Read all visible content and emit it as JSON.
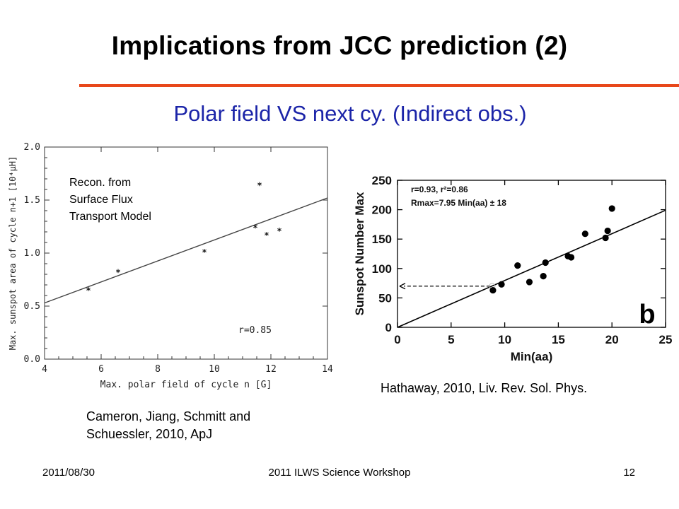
{
  "slide": {
    "title": "Implications from JCC prediction (2)",
    "subtitle": "Polar field VS next cy. (Indirect obs.)",
    "accent_color": "#e8471a",
    "subtitle_color": "#1b24a8"
  },
  "captions": {
    "left": [
      "Cameron, Jiang, Schmitt and",
      "Schuessler, 2010, ApJ"
    ],
    "right": "Hathaway, 2010, Liv. Rev. Sol. Phys."
  },
  "footer": {
    "date": "2011/08/30",
    "event": "2011 ILWS Science Workshop",
    "page": "12"
  },
  "chart_data": [
    {
      "type": "scatter",
      "xlabel": "Max. polar field of cycle n [G]",
      "ylabel": "Max. sunspot area of cycle n+1 [10⁴μH]",
      "xlim": [
        4,
        14
      ],
      "ylim": [
        0.0,
        2.0
      ],
      "xticks": [
        "4",
        "6",
        "8",
        "10",
        "12",
        "14"
      ],
      "yticks": [
        "0.0",
        "0.5",
        "1.0",
        "1.5",
        "2.0"
      ],
      "annotation": [
        "Recon. from",
        "Surface Flux",
        "Transport Model"
      ],
      "correlation_label": "r=0.85",
      "points": [
        {
          "x": 5.55,
          "y": 0.65
        },
        {
          "x": 6.6,
          "y": 0.82
        },
        {
          "x": 9.65,
          "y": 1.01
        },
        {
          "x": 11.45,
          "y": 1.24
        },
        {
          "x": 11.6,
          "y": 1.64
        },
        {
          "x": 11.85,
          "y": 1.17
        },
        {
          "x": 12.3,
          "y": 1.21
        }
      ],
      "fit_line": [
        {
          "x": 4,
          "y": 0.53
        },
        {
          "x": 14,
          "y": 1.52
        }
      ]
    },
    {
      "type": "scatter",
      "xlabel": "Min(aa)",
      "ylabel": "Sunspot Number Max",
      "xlim": [
        0,
        25
      ],
      "ylim": [
        0,
        250
      ],
      "xticks": [
        "0",
        "5",
        "10",
        "15",
        "20",
        "25"
      ],
      "yticks": [
        "0",
        "50",
        "100",
        "150",
        "200",
        "250"
      ],
      "stats_line1": "r=0.93, r²=0.86",
      "stats_line2": "Rmax=7.95 Min(aa) ± 18",
      "panel_label": "b",
      "points": [
        {
          "x": 8.9,
          "y": 63
        },
        {
          "x": 9.7,
          "y": 73
        },
        {
          "x": 11.2,
          "y": 105
        },
        {
          "x": 12.3,
          "y": 77
        },
        {
          "x": 13.6,
          "y": 87
        },
        {
          "x": 13.8,
          "y": 110
        },
        {
          "x": 15.9,
          "y": 121
        },
        {
          "x": 16.2,
          "y": 119
        },
        {
          "x": 17.5,
          "y": 159
        },
        {
          "x": 19.4,
          "y": 152
        },
        {
          "x": 19.6,
          "y": 164
        },
        {
          "x": 20.0,
          "y": 202
        }
      ],
      "fit_line": [
        {
          "x": 0,
          "y": 0
        },
        {
          "x": 25,
          "y": 199
        }
      ],
      "prediction_arrow": {
        "x_from": 8.9,
        "x_to": 0,
        "y": 70
      }
    }
  ]
}
